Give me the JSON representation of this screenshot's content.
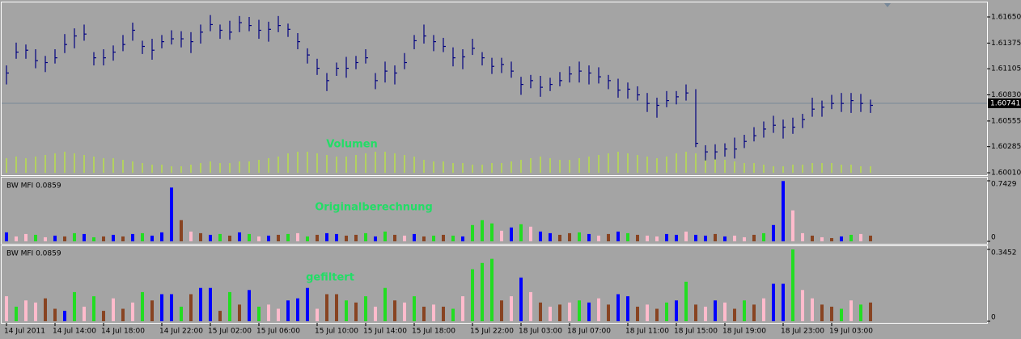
{
  "chart_data": [
    {
      "type": "hlc",
      "annotation": "Volumen",
      "annotation_color": "#22dd66",
      "bar_color": "#000080",
      "volume_color": "#b8e04a",
      "current_price_color": "#778899",
      "ylim": [
        1.59985,
        1.61786
      ],
      "yticks": [
        {
          "value": 1.6165,
          "label": "1.61650"
        },
        1.61375,
        1.61105,
        {
          "value": 1.6083,
          "label": "1.60830"
        },
        1.60555,
        1.60285,
        {
          "value": 1.6001,
          "label": "1.60010"
        }
      ],
      "current_price": 1.60741,
      "categories": [
        "14 Jul 2011",
        null,
        null,
        null,
        null,
        "14 Jul 14:00",
        null,
        null,
        null,
        null,
        "14 Jul 18:00",
        null,
        null,
        null,
        null,
        null,
        "14 Jul 22:00",
        null,
        null,
        null,
        null,
        "15 Jul 02:00",
        null,
        null,
        null,
        null,
        "15 Jul 06:00",
        null,
        null,
        null,
        null,
        null,
        "15 Jul 10:00",
        null,
        null,
        null,
        null,
        "15 Jul 14:00",
        null,
        null,
        null,
        null,
        "15 Jul 18:00",
        null,
        null,
        null,
        null,
        null,
        "15 Jul 22:00",
        null,
        null,
        null,
        null,
        "18 Jul 03:00",
        null,
        null,
        null,
        null,
        "18 Jul 07:00",
        null,
        null,
        null,
        null,
        null,
        "18 Jul 11:00",
        null,
        null,
        null,
        null,
        "18 Jul 15:00",
        null,
        null,
        null,
        null,
        "18 Jul 19:00",
        null,
        null,
        null,
        null,
        null,
        "18 Jul 23:00",
        null,
        null,
        null,
        null,
        "19 Jul 03:00",
        null,
        null,
        null,
        null
      ],
      "close": [
        1.6106,
        1.6128,
        1.613,
        1.6119,
        1.6117,
        1.6122,
        1.6136,
        1.6145,
        1.6147,
        1.6122,
        1.6122,
        1.6128,
        1.6136,
        1.6151,
        1.6134,
        1.613,
        1.6139,
        1.6142,
        1.6142,
        1.6139,
        1.6149,
        1.6157,
        1.6151,
        1.6149,
        1.6159,
        1.6156,
        1.6151,
        1.6152,
        1.6156,
        1.6152,
        1.6139,
        1.6125,
        1.6111,
        1.6098,
        1.6111,
        1.6111,
        1.6117,
        1.6122,
        1.6098,
        1.6108,
        1.6106,
        1.6117,
        1.614,
        1.6145,
        1.6139,
        1.6134,
        1.6122,
        1.6123,
        1.6132,
        1.6122,
        1.6113,
        1.6115,
        1.6108,
        1.6094,
        1.6098,
        1.6091,
        1.6094,
        1.6098,
        1.6105,
        1.6108,
        1.6106,
        1.6102,
        1.6098,
        1.6088,
        1.6089,
        1.6083,
        1.6074,
        1.6072,
        1.6077,
        1.6081,
        1.6085,
        1.6032,
        1.6023,
        1.6023,
        1.6026,
        1.6026,
        1.6034,
        1.604,
        1.6047,
        1.6051,
        1.6049,
        1.6049,
        1.6057,
        1.6068,
        1.607,
        1.6074,
        1.6074,
        1.6077,
        1.6074,
        1.6072
      ],
      "high": [
        1.6114,
        1.6138,
        1.6136,
        1.6131,
        1.6124,
        1.6131,
        1.6147,
        1.6153,
        1.6157,
        1.6128,
        1.6131,
        1.6135,
        1.6146,
        1.6159,
        1.614,
        1.6142,
        1.6146,
        1.6151,
        1.615,
        1.6149,
        1.6157,
        1.6167,
        1.6157,
        1.6161,
        1.6166,
        1.6165,
        1.6162,
        1.616,
        1.6166,
        1.6158,
        1.6148,
        1.6132,
        1.6121,
        1.6106,
        1.6117,
        1.6123,
        1.6124,
        1.6131,
        1.6106,
        1.6118,
        1.6114,
        1.6127,
        1.6146,
        1.6157,
        1.6146,
        1.6143,
        1.6133,
        1.6131,
        1.6142,
        1.6128,
        1.6122,
        1.6122,
        1.6118,
        1.6102,
        1.6104,
        1.6103,
        1.6101,
        1.6107,
        1.6113,
        1.6118,
        1.6114,
        1.6112,
        1.6104,
        1.61,
        1.6096,
        1.6092,
        1.6085,
        1.608,
        1.6087,
        1.6087,
        1.6094,
        1.6089,
        1.603,
        1.6031,
        1.6032,
        1.6038,
        1.6041,
        1.6049,
        1.6055,
        1.6061,
        1.6057,
        1.6059,
        1.6063,
        1.608,
        1.6077,
        1.6083,
        1.6085,
        1.6085,
        1.6084,
        1.6078
      ],
      "low": [
        1.6094,
        1.6121,
        1.6121,
        1.6111,
        1.6107,
        1.6116,
        1.6127,
        1.6132,
        1.614,
        1.6114,
        1.6114,
        1.6119,
        1.6129,
        1.614,
        1.6126,
        1.612,
        1.6132,
        1.6136,
        1.6133,
        1.6127,
        1.6137,
        1.615,
        1.6142,
        1.6141,
        1.6149,
        1.615,
        1.6142,
        1.6139,
        1.6149,
        1.6144,
        1.6131,
        1.6116,
        1.6104,
        1.6087,
        1.6103,
        1.6101,
        1.611,
        1.6116,
        1.6089,
        1.6096,
        1.6094,
        1.611,
        1.6131,
        1.6137,
        1.6129,
        1.6128,
        1.6113,
        1.611,
        1.6125,
        1.6114,
        1.6105,
        1.6106,
        1.6101,
        1.6083,
        1.609,
        1.6081,
        1.6087,
        1.6092,
        1.6096,
        1.6096,
        1.6094,
        1.6095,
        1.6089,
        1.608,
        1.6079,
        1.6077,
        1.6065,
        1.6059,
        1.607,
        1.6073,
        1.6077,
        1.6028,
        1.6014,
        1.6015,
        1.6018,
        1.6016,
        1.6027,
        1.6034,
        1.6038,
        1.6043,
        1.6037,
        1.6042,
        1.6048,
        1.606,
        1.606,
        1.6068,
        1.6065,
        1.6064,
        1.6065,
        1.6064
      ],
      "volume": [
        18,
        20,
        18,
        20,
        22,
        24,
        26,
        24,
        22,
        20,
        18,
        18,
        16,
        14,
        12,
        10,
        10,
        8,
        8,
        10,
        12,
        14,
        12,
        12,
        14,
        14,
        16,
        18,
        20,
        24,
        26,
        26,
        24,
        22,
        20,
        20,
        22,
        24,
        26,
        26,
        24,
        22,
        20,
        16,
        14,
        14,
        12,
        12,
        10,
        10,
        12,
        12,
        14,
        16,
        18,
        20,
        18,
        16,
        16,
        18,
        20,
        22,
        24,
        26,
        24,
        22,
        20,
        18,
        20,
        24,
        26,
        24,
        20,
        18,
        16,
        14,
        12,
        12,
        10,
        8,
        8,
        10,
        10,
        12,
        12,
        12,
        10,
        10,
        8,
        8
      ]
    },
    {
      "type": "bar",
      "title": "BW MFI 0.0859",
      "annotation": "Originalberechnung",
      "annotation_color": "#22dd66",
      "ylim": [
        0,
        0.7429
      ],
      "yticks": [
        0.7429,
        0
      ],
      "values": [
        0.11,
        0.06,
        0.09,
        0.08,
        0.05,
        0.07,
        0.06,
        0.1,
        0.09,
        0.05,
        0.06,
        0.08,
        0.06,
        0.09,
        0.1,
        0.07,
        0.11,
        0.66,
        0.26,
        0.12,
        0.1,
        0.08,
        0.09,
        0.07,
        0.11,
        0.09,
        0.06,
        0.07,
        0.08,
        0.09,
        0.1,
        0.06,
        0.08,
        0.1,
        0.09,
        0.07,
        0.08,
        0.1,
        0.06,
        0.12,
        0.08,
        0.07,
        0.09,
        0.06,
        0.07,
        0.08,
        0.07,
        0.06,
        0.2,
        0.26,
        0.22,
        0.13,
        0.17,
        0.21,
        0.18,
        0.12,
        0.1,
        0.08,
        0.1,
        0.11,
        0.09,
        0.07,
        0.09,
        0.12,
        0.1,
        0.08,
        0.07,
        0.06,
        0.09,
        0.08,
        0.12,
        0.08,
        0.07,
        0.09,
        0.06,
        0.07,
        0.05,
        0.08,
        0.1,
        0.2,
        0.74,
        0.38,
        0.1,
        0.07,
        0.05,
        0.04,
        0.06,
        0.08,
        0.09,
        0.07
      ],
      "colors": [
        "#00f",
        "#fbc",
        "#fbc",
        "#2d2",
        "#fbc",
        "#00f",
        "#842",
        "#2d2",
        "#00f",
        "#2d2",
        "#842",
        "#00f",
        "#842",
        "#00f",
        "#2d2",
        "#00f",
        "#00f",
        "#00f",
        "#842",
        "#fbc",
        "#842",
        "#00f",
        "#2d2",
        "#842",
        "#00f",
        "#2d2",
        "#fbc",
        "#00f",
        "#842",
        "#2d2",
        "#fbc",
        "#2d2",
        "#842",
        "#00f",
        "#00f",
        "#842",
        "#842",
        "#2d2",
        "#00f",
        "#2d2",
        "#842",
        "#fbc",
        "#00f",
        "#842",
        "#2d2",
        "#842",
        "#2d2",
        "#00f",
        "#2d2",
        "#2d2",
        "#2d2",
        "#fbc",
        "#00f",
        "#2d2",
        "#fbc",
        "#00f",
        "#00f",
        "#842",
        "#842",
        "#2d2",
        "#00f",
        "#fbc",
        "#842",
        "#00f",
        "#2d2",
        "#842",
        "#fbc",
        "#fbc",
        "#00f",
        "#00f",
        "#fbc",
        "#00f",
        "#00f",
        "#842",
        "#00f",
        "#fbc",
        "#fbc",
        "#842",
        "#2d2",
        "#00f",
        "#00f",
        "#fbc",
        "#fbc",
        "#842",
        "#fbc",
        "#842",
        "#00f",
        "#2d2",
        "#fbc",
        "#842"
      ]
    },
    {
      "type": "bar",
      "title": "BW MFI 0.0859",
      "annotation": "gefiltert",
      "annotation_color": "#22dd66",
      "ylim": [
        0,
        0.3452
      ],
      "yticks": [
        0.3452,
        0
      ],
      "values": [
        0.12,
        0.07,
        0.1,
        0.09,
        0.11,
        0.06,
        0.05,
        0.14,
        0.07,
        0.12,
        0.05,
        0.11,
        0.06,
        0.09,
        0.14,
        0.1,
        0.13,
        0.13,
        0.07,
        0.13,
        0.16,
        0.16,
        0.05,
        0.14,
        0.08,
        0.15,
        0.07,
        0.08,
        0.06,
        0.1,
        0.11,
        0.16,
        0.06,
        0.13,
        0.13,
        0.1,
        0.09,
        0.12,
        0.07,
        0.16,
        0.1,
        0.09,
        0.12,
        0.07,
        0.08,
        0.07,
        0.06,
        0.12,
        0.25,
        0.28,
        0.3,
        0.1,
        0.12,
        0.21,
        0.14,
        0.09,
        0.07,
        0.08,
        0.09,
        0.1,
        0.09,
        0.11,
        0.08,
        0.13,
        0.12,
        0.07,
        0.08,
        0.06,
        0.09,
        0.1,
        0.19,
        0.08,
        0.07,
        0.1,
        0.09,
        0.06,
        0.1,
        0.08,
        0.11,
        0.18,
        0.18,
        0.345,
        0.15,
        0.11,
        0.08,
        0.07,
        0.06,
        0.1,
        0.08,
        0.09
      ],
      "colors": [
        "#fbc",
        "#2d2",
        "#fbc",
        "#fbc",
        "#842",
        "#842",
        "#00f",
        "#2d2",
        "#fbc",
        "#2d2",
        "#842",
        "#fbc",
        "#842",
        "#fbc",
        "#2d2",
        "#842",
        "#00f",
        "#00f",
        "#2d2",
        "#842",
        "#00f",
        "#00f",
        "#842",
        "#2d2",
        "#842",
        "#00f",
        "#2d2",
        "#fbc",
        "#fbc",
        "#00f",
        "#00f",
        "#00f",
        "#fbc",
        "#842",
        "#842",
        "#2d2",
        "#842",
        "#2d2",
        "#fbc",
        "#2d2",
        "#842",
        "#fbc",
        "#2d2",
        "#842",
        "#fbc",
        "#842",
        "#2d2",
        "#fbc",
        "#2d2",
        "#2d2",
        "#2d2",
        "#842",
        "#fbc",
        "#00f",
        "#fbc",
        "#842",
        "#fbc",
        "#842",
        "#fbc",
        "#2d2",
        "#00f",
        "#fbc",
        "#842",
        "#00f",
        "#00f",
        "#842",
        "#fbc",
        "#842",
        "#2d2",
        "#00f",
        "#2d2",
        "#842",
        "#fbc",
        "#00f",
        "#fbc",
        "#842",
        "#2d2",
        "#842",
        "#fbc",
        "#00f",
        "#00f",
        "#2d2",
        "#fbc",
        "#fbc",
        "#842",
        "#842",
        "#2d2",
        "#fbc",
        "#2d2",
        "#842"
      ]
    }
  ]
}
